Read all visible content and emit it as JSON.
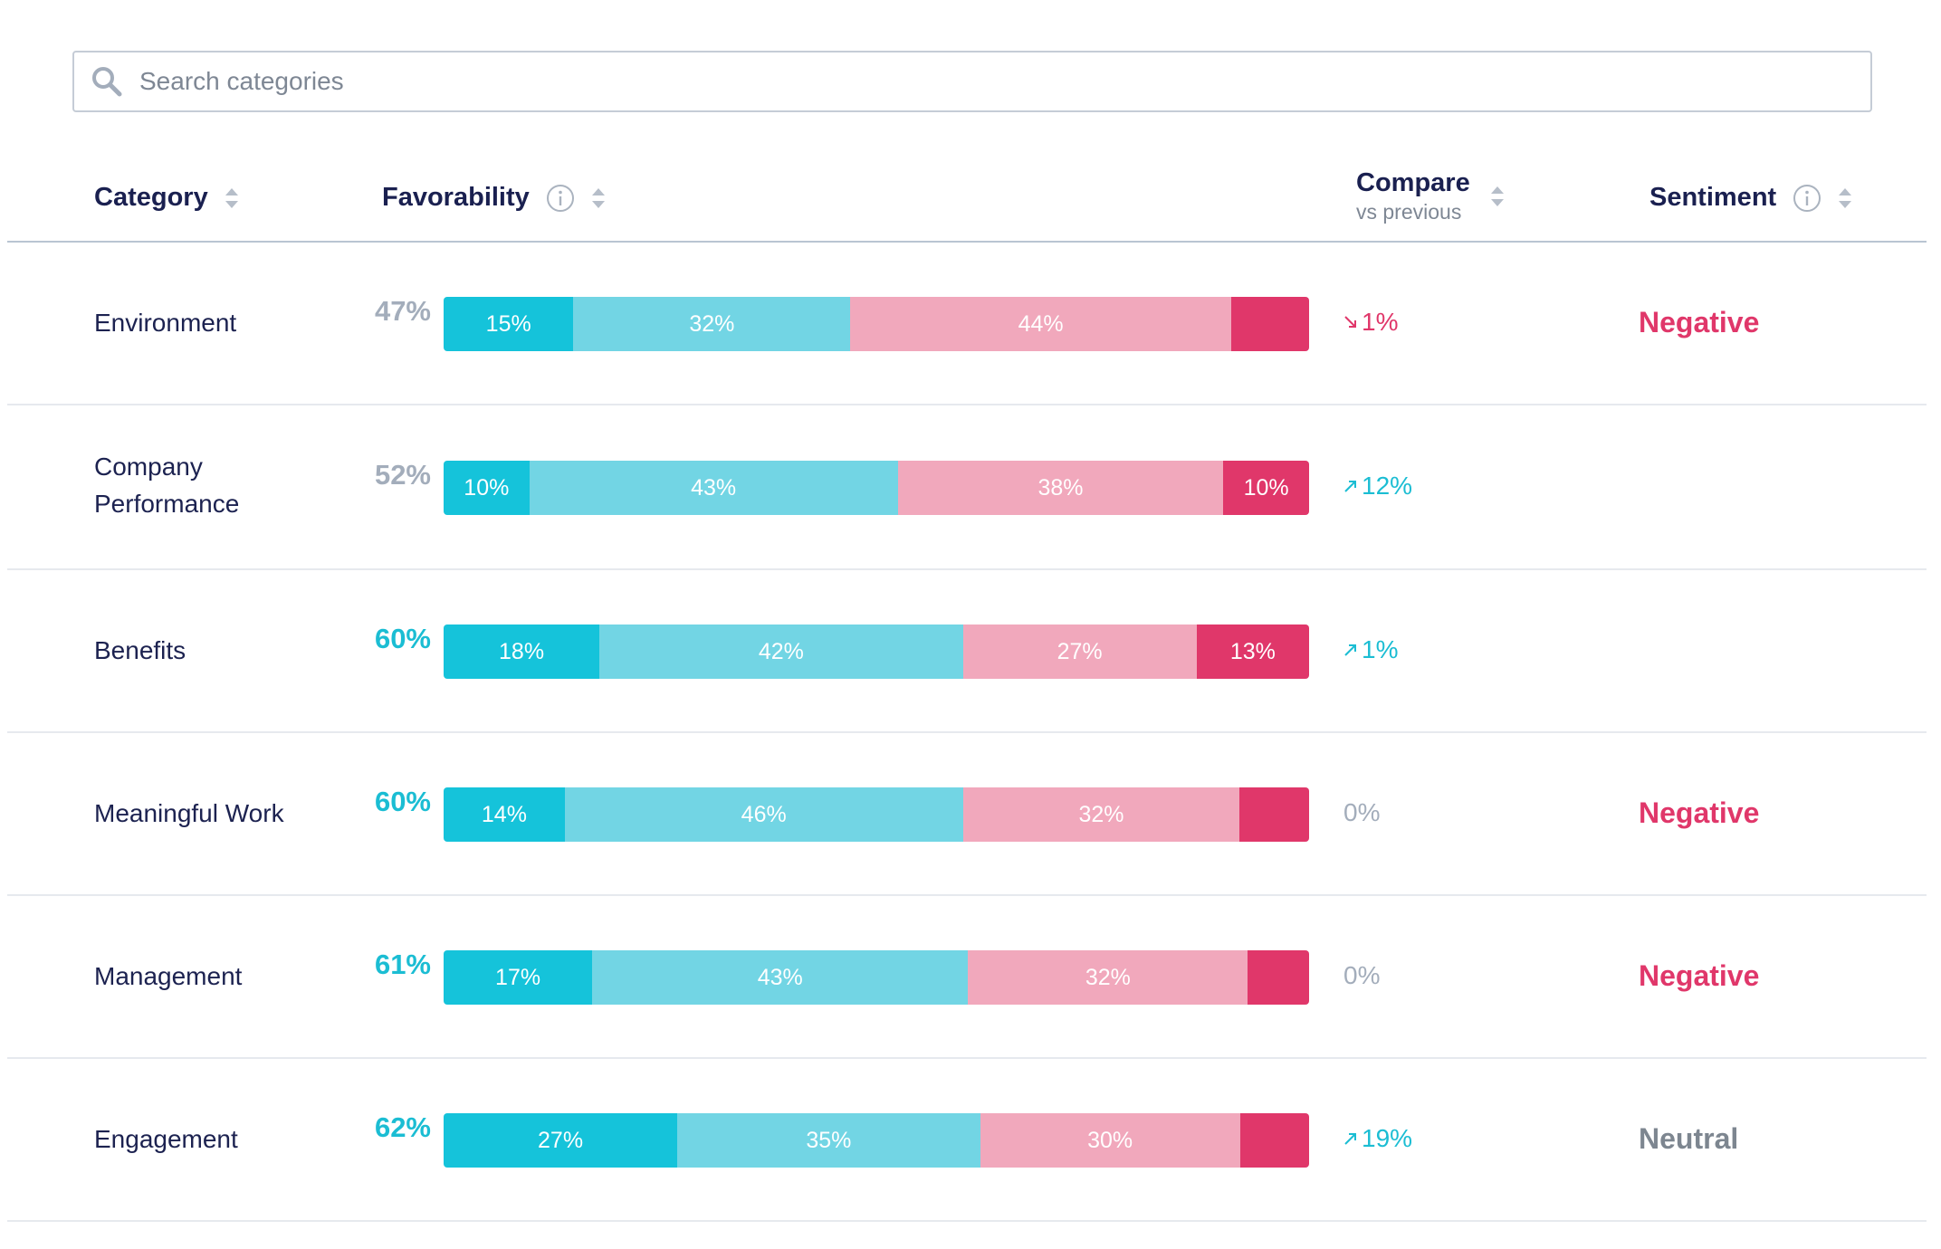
{
  "search": {
    "placeholder": "Search categories",
    "icon": "search-icon"
  },
  "columns": {
    "category": "Category",
    "favorability": "Favorability",
    "compare": "Compare",
    "compare_sub": "vs previous",
    "sentiment": "Sentiment"
  },
  "colors": {
    "favorable_strong": "#15c3da",
    "favorable": "#72d5e4",
    "unfavorable": "#f1a8bc",
    "unfavorable_strong": "#e0376a",
    "fav_teal": "#1bbdd3",
    "fav_gray": "#a3adbb",
    "negative": "#e0376a",
    "neutral": "#7d8690",
    "zero": "#a3adbb"
  },
  "rows": [
    {
      "category": "Environment",
      "favorability": "47%",
      "fav_style": "gray",
      "bars": [
        {
          "value": 15,
          "label": "15%"
        },
        {
          "value": 32,
          "label": "32%"
        },
        {
          "value": 44,
          "label": "44%"
        },
        {
          "value": 9,
          "label": ""
        }
      ],
      "compare": "1%",
      "trend": "down",
      "sentiment": "Negative",
      "sentiment_style": "negative"
    },
    {
      "category": "Company Performance",
      "favorability": "52%",
      "fav_style": "gray",
      "bars": [
        {
          "value": 10,
          "label": "10%"
        },
        {
          "value": 43,
          "label": "43%"
        },
        {
          "value": 38,
          "label": "38%"
        },
        {
          "value": 10,
          "label": "10%"
        }
      ],
      "compare": "12%",
      "trend": "up",
      "sentiment": "",
      "sentiment_style": "none"
    },
    {
      "category": "Benefits",
      "favorability": "60%",
      "fav_style": "teal",
      "bars": [
        {
          "value": 18,
          "label": "18%"
        },
        {
          "value": 42,
          "label": "42%"
        },
        {
          "value": 27,
          "label": "27%"
        },
        {
          "value": 13,
          "label": "13%"
        }
      ],
      "compare": "1%",
      "trend": "up",
      "sentiment": "",
      "sentiment_style": "none"
    },
    {
      "category": "Meaningful Work",
      "favorability": "60%",
      "fav_style": "teal",
      "bars": [
        {
          "value": 14,
          "label": "14%"
        },
        {
          "value": 46,
          "label": "46%"
        },
        {
          "value": 32,
          "label": "32%"
        },
        {
          "value": 8,
          "label": ""
        }
      ],
      "compare": "0%",
      "trend": "none",
      "sentiment": "Negative",
      "sentiment_style": "negative"
    },
    {
      "category": "Management",
      "favorability": "61%",
      "fav_style": "teal",
      "bars": [
        {
          "value": 17,
          "label": "17%"
        },
        {
          "value": 43,
          "label": "43%"
        },
        {
          "value": 32,
          "label": "32%"
        },
        {
          "value": 7,
          "label": ""
        }
      ],
      "compare": "0%",
      "trend": "none",
      "sentiment": "Negative",
      "sentiment_style": "negative"
    },
    {
      "category": "Engagement",
      "favorability": "62%",
      "fav_style": "teal",
      "bars": [
        {
          "value": 27,
          "label": "27%"
        },
        {
          "value": 35,
          "label": "35%"
        },
        {
          "value": 30,
          "label": "30%"
        },
        {
          "value": 8,
          "label": ""
        }
      ],
      "compare": "19%",
      "trend": "up",
      "sentiment": "Neutral",
      "sentiment_style": "neutral"
    }
  ]
}
